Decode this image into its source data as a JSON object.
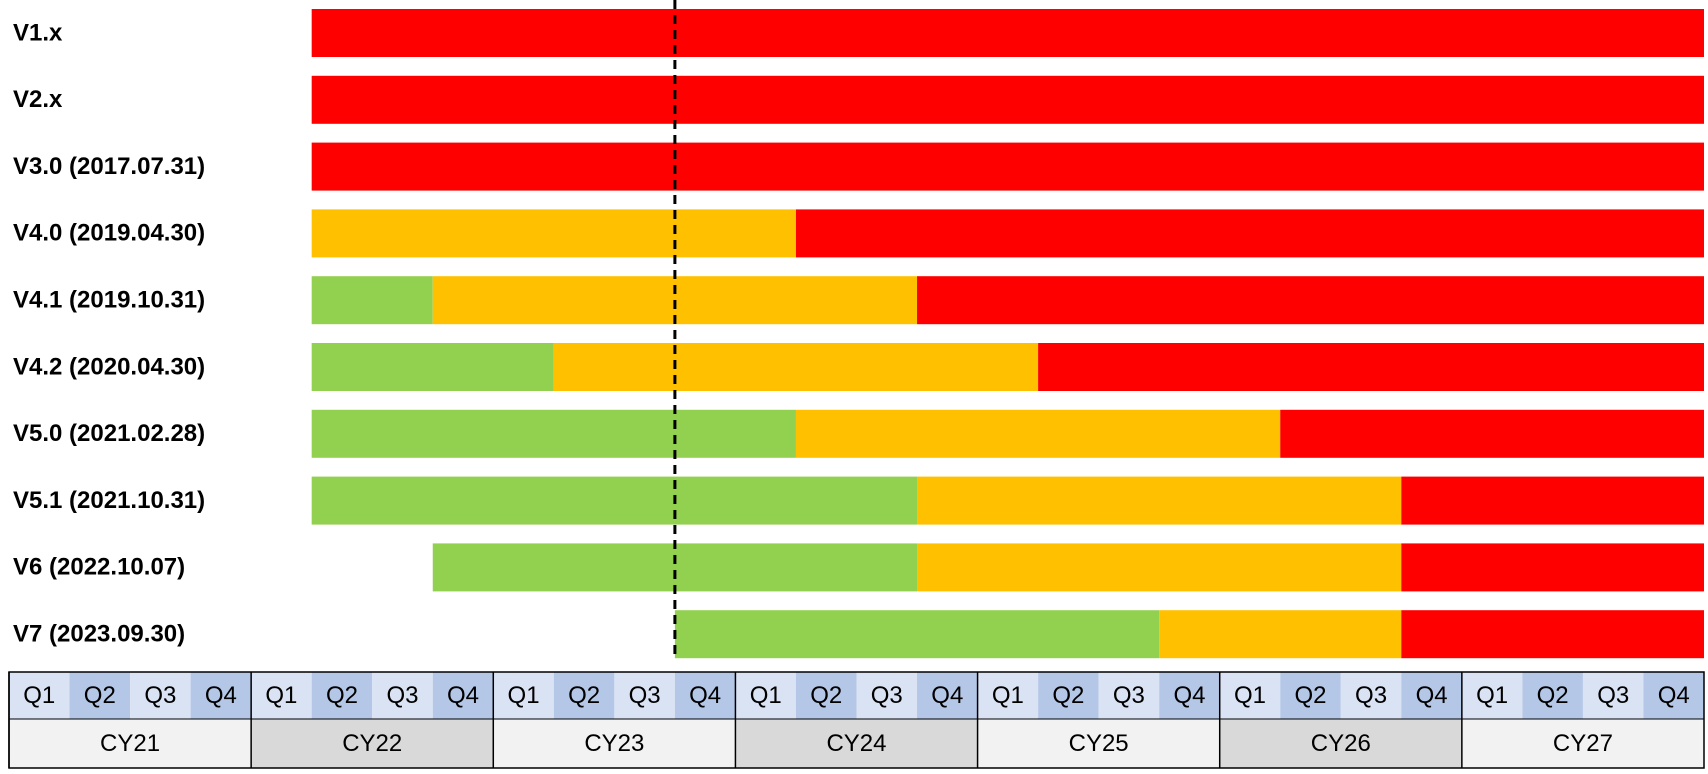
{
  "chart_data": {
    "type": "timeline",
    "categories": [
      "V1.x",
      "V2.x",
      "V3.0 (2017.07.31)",
      "V4.0 (2019.04.30)",
      "V4.1 (2019.10.31)",
      "V4.2 (2020.04.30)",
      "V5.0 (2021.02.28)",
      "V5.1 (2021.10.31)",
      "V6 (2022.10.07)",
      "V7 (2023.09.30)"
    ],
    "starts": [
      2022.25,
      2022.25,
      2022.25,
      2022.25,
      2022.25,
      2022.25,
      2022.25,
      2022.25,
      2022.75,
      2023.75
    ],
    "series": [
      {
        "color": "#92d050",
        "values": [
          0,
          0,
          0,
          0,
          0.5,
          1.0,
          2.0,
          2.5,
          2.0,
          2.0
        ]
      },
      {
        "color": "#ffc000",
        "values": [
          0,
          0,
          0,
          2.0,
          2.0,
          2.0,
          2.0,
          2.0,
          2.0,
          1.0
        ]
      },
      {
        "color": "#ff0000",
        "values": [
          5.75,
          5.75,
          5.75,
          3.75,
          3.25,
          2.75,
          1.75,
          1.25,
          1.25,
          1.25
        ]
      }
    ],
    "marker": 2023.75,
    "xlim": [
      2021,
      2028
    ],
    "years": [
      "CY21",
      "CY22",
      "CY23",
      "CY24",
      "CY25",
      "CY26",
      "CY27"
    ],
    "quarters": [
      "Q1",
      "Q2",
      "Q3",
      "Q4"
    ]
  }
}
